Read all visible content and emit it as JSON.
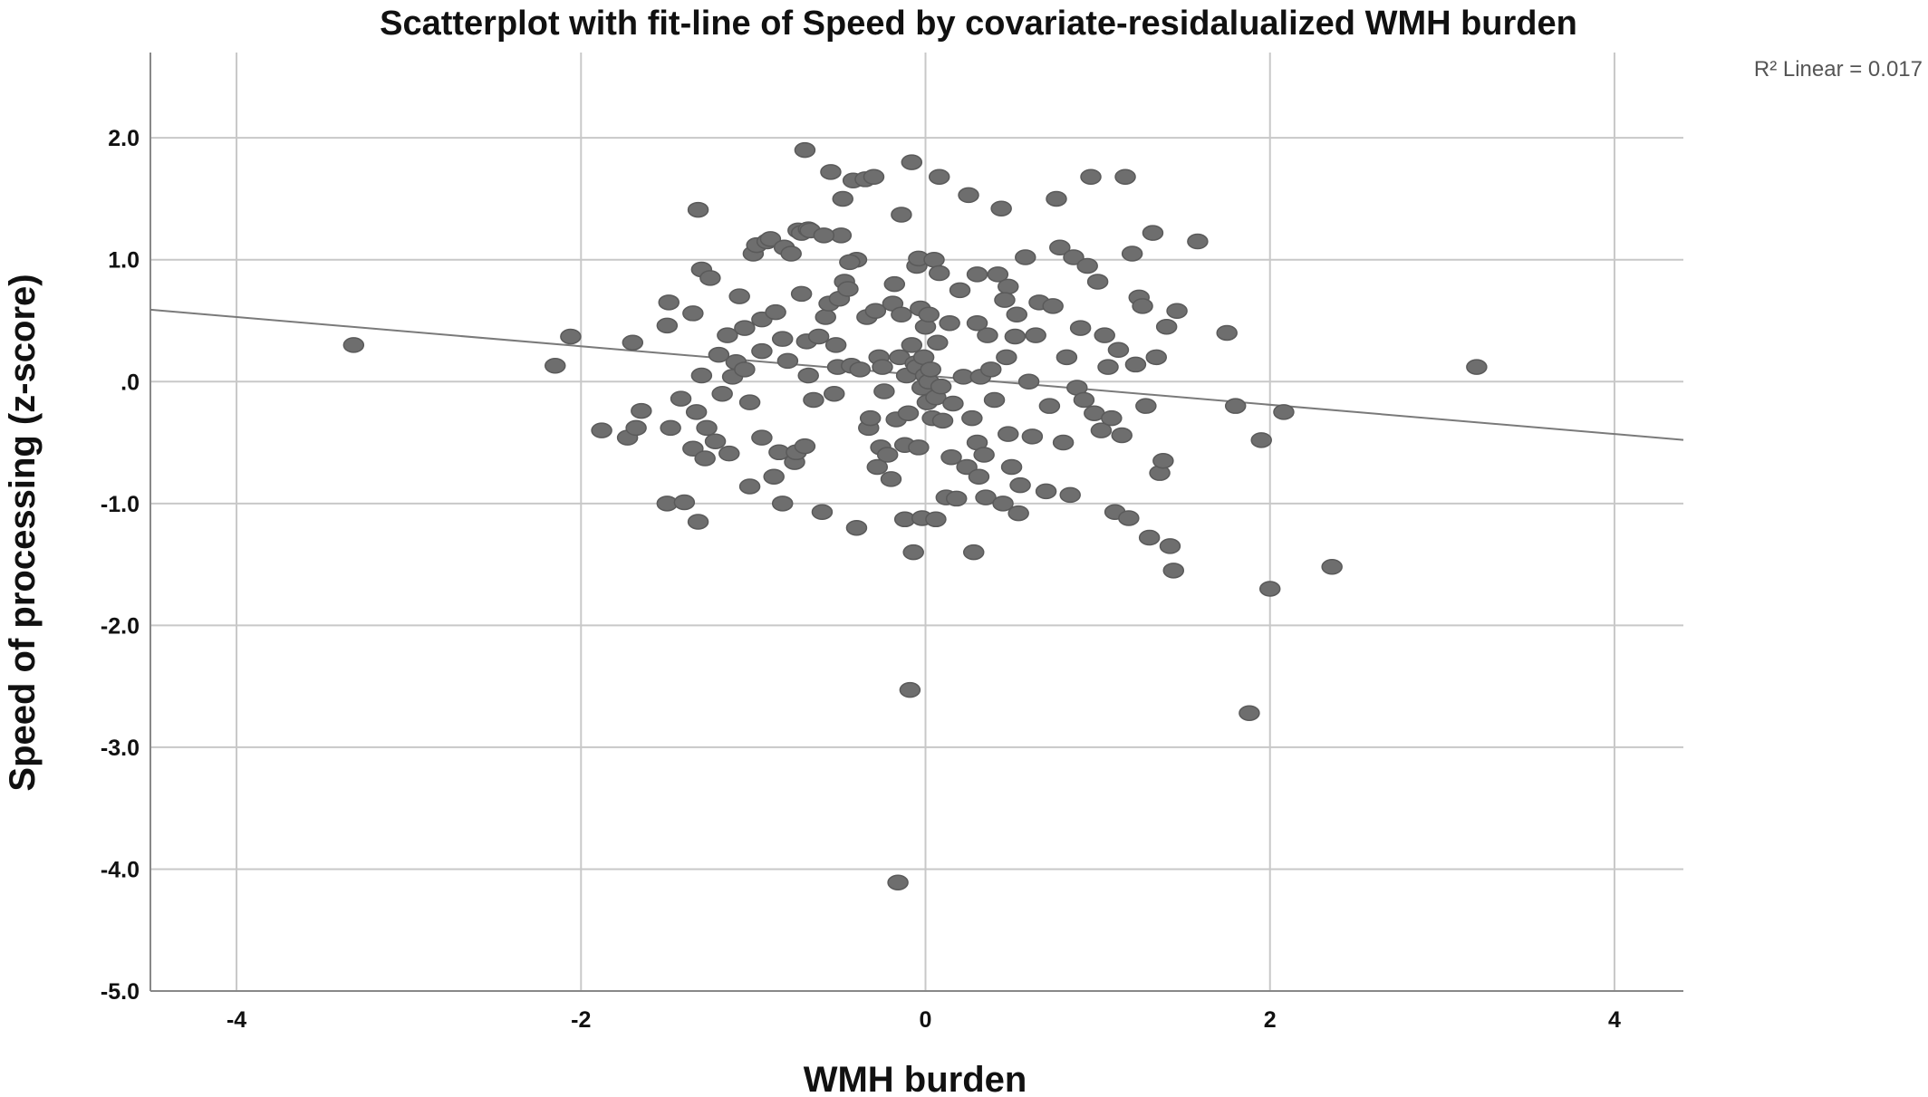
{
  "chart_data": {
    "type": "scatter",
    "title": "Scatterplot with fit-line of Speed by covariate-residalualized WMH burden",
    "xlabel": "WMH burden",
    "ylabel": "Speed of processing (z-score)",
    "xlim": [
      -4.5,
      4.4
    ],
    "ylim": [
      -5.0,
      2.7
    ],
    "x_ticks": [
      -4,
      -2,
      0,
      2,
      4
    ],
    "x_tick_labels": [
      "-4",
      "-2",
      "0",
      "2",
      "4"
    ],
    "y_ticks": [
      2,
      1,
      0,
      -1,
      -2,
      -3,
      -4,
      -5
    ],
    "y_tick_labels": [
      "2.0",
      "1.0",
      ".0",
      "-1.0",
      "-2.0",
      "-3.0",
      "-4.0",
      "-5.0"
    ],
    "grid": true,
    "annotation": "R² Linear = 0.017",
    "fit_line": {
      "intercept": 0.05,
      "slope": -0.12
    },
    "point_color": "#6e6e6e",
    "line_color": "#7a7a7a",
    "points": [
      [
        -3.32,
        0.3
      ],
      [
        -2.15,
        0.13
      ],
      [
        -2.06,
        0.37
      ],
      [
        -1.88,
        -0.4
      ],
      [
        -1.73,
        -0.46
      ],
      [
        -1.7,
        0.32
      ],
      [
        -1.65,
        -0.24
      ],
      [
        -1.68,
        -0.38
      ],
      [
        -1.49,
        0.65
      ],
      [
        -1.5,
        0.46
      ],
      [
        -1.5,
        -1.0
      ],
      [
        -1.48,
        -0.38
      ],
      [
        -1.42,
        -0.14
      ],
      [
        -1.4,
        -0.99
      ],
      [
        -1.35,
        0.56
      ],
      [
        -1.35,
        -0.55
      ],
      [
        -1.33,
        -0.25
      ],
      [
        -1.32,
        -1.15
      ],
      [
        -1.3,
        0.05
      ],
      [
        -1.3,
        0.92
      ],
      [
        -1.28,
        -0.63
      ],
      [
        -1.27,
        -0.38
      ],
      [
        -1.25,
        0.85
      ],
      [
        -1.22,
        -0.49
      ],
      [
        -1.32,
        1.41
      ],
      [
        -1.15,
        0.38
      ],
      [
        -1.14,
        -0.59
      ],
      [
        -1.12,
        0.04
      ],
      [
        -1.1,
        0.16
      ],
      [
        -1.08,
        0.7
      ],
      [
        -1.05,
        0.1
      ],
      [
        -1.05,
        0.44
      ],
      [
        -1.02,
        -0.17
      ],
      [
        -1.02,
        -0.86
      ],
      [
        -1.0,
        1.05
      ],
      [
        -0.98,
        1.12
      ],
      [
        -0.95,
        0.25
      ],
      [
        -0.95,
        0.51
      ],
      [
        -0.95,
        -0.46
      ],
      [
        -0.92,
        1.15
      ],
      [
        -0.9,
        1.17
      ],
      [
        -0.88,
        -0.78
      ],
      [
        -0.87,
        0.57
      ],
      [
        -0.85,
        -0.58
      ],
      [
        -0.83,
        -1.0
      ],
      [
        -0.82,
        1.1
      ],
      [
        -0.8,
        0.17
      ],
      [
        -0.78,
        1.05
      ],
      [
        -0.76,
        -0.66
      ],
      [
        -0.75,
        -0.58
      ],
      [
        -0.74,
        1.24
      ],
      [
        -0.72,
        0.72
      ],
      [
        -0.72,
        1.22
      ],
      [
        -0.7,
        1.9
      ],
      [
        -0.7,
        -0.53
      ],
      [
        -0.69,
        0.33
      ],
      [
        -0.68,
        0.05
      ],
      [
        -0.68,
        1.25
      ],
      [
        -0.67,
        1.24
      ],
      [
        -0.65,
        -0.15
      ],
      [
        -0.62,
        0.37
      ],
      [
        -0.6,
        -1.07
      ],
      [
        -0.58,
        0.53
      ],
      [
        -0.56,
        0.64
      ],
      [
        -0.55,
        1.72
      ],
      [
        -0.52,
        0.3
      ],
      [
        -0.51,
        0.12
      ],
      [
        -0.5,
        0.68
      ],
      [
        -0.49,
        1.2
      ],
      [
        -0.48,
        1.5
      ],
      [
        -0.47,
        0.82
      ],
      [
        -0.45,
        0.76
      ],
      [
        -0.43,
        0.13
      ],
      [
        -0.42,
        1.65
      ],
      [
        -0.4,
        1.0
      ],
      [
        -0.4,
        -1.2
      ],
      [
        -0.38,
        0.1
      ],
      [
        -0.35,
        1.66
      ],
      [
        -0.34,
        0.53
      ],
      [
        -0.33,
        -0.38
      ],
      [
        -0.32,
        -0.3
      ],
      [
        -0.3,
        1.68
      ],
      [
        -0.29,
        0.58
      ],
      [
        -0.28,
        -0.7
      ],
      [
        -0.27,
        0.2
      ],
      [
        -0.26,
        -0.54
      ],
      [
        -0.25,
        0.12
      ],
      [
        -0.24,
        -0.08
      ],
      [
        -0.22,
        -0.6
      ],
      [
        -0.2,
        -0.8
      ],
      [
        -0.19,
        0.64
      ],
      [
        -0.18,
        0.8
      ],
      [
        -0.17,
        -0.31
      ],
      [
        -0.16,
        -4.11
      ],
      [
        -0.15,
        0.2
      ],
      [
        -0.14,
        1.37
      ],
      [
        -0.14,
        0.55
      ],
      [
        -0.12,
        -1.13
      ],
      [
        -0.12,
        -0.52
      ],
      [
        -0.11,
        0.05
      ],
      [
        -0.1,
        -0.26
      ],
      [
        -0.09,
        -2.53
      ],
      [
        -0.08,
        1.8
      ],
      [
        -0.08,
        0.3
      ],
      [
        -0.07,
        -1.4
      ],
      [
        -0.06,
        0.15
      ],
      [
        -0.05,
        0.95
      ],
      [
        -0.05,
        0.12
      ],
      [
        -0.04,
        1.01
      ],
      [
        -0.04,
        -0.54
      ],
      [
        -0.03,
        0.6
      ],
      [
        -0.02,
        -0.05
      ],
      [
        -0.02,
        -1.12
      ],
      [
        -0.01,
        0.2
      ],
      [
        0.0,
        0.45
      ],
      [
        0.0,
        0.05
      ],
      [
        0.01,
        -0.17
      ],
      [
        0.02,
        0.0
      ],
      [
        0.02,
        0.55
      ],
      [
        0.03,
        0.1
      ],
      [
        0.04,
        -0.3
      ],
      [
        0.05,
        1.0
      ],
      [
        0.06,
        -0.13
      ],
      [
        0.06,
        -1.13
      ],
      [
        0.07,
        0.32
      ],
      [
        0.08,
        1.68
      ],
      [
        0.08,
        0.89
      ],
      [
        0.09,
        -0.04
      ],
      [
        0.1,
        -0.32
      ],
      [
        0.12,
        -0.95
      ],
      [
        0.14,
        0.48
      ],
      [
        0.15,
        -0.62
      ],
      [
        0.16,
        -0.18
      ],
      [
        0.18,
        -0.96
      ],
      [
        0.2,
        0.75
      ],
      [
        0.22,
        0.04
      ],
      [
        0.24,
        -0.7
      ],
      [
        0.25,
        1.53
      ],
      [
        0.27,
        -0.3
      ],
      [
        0.28,
        -1.4
      ],
      [
        0.3,
        -0.5
      ],
      [
        0.3,
        0.88
      ],
      [
        0.31,
        -0.78
      ],
      [
        0.32,
        0.04
      ],
      [
        0.34,
        -0.6
      ],
      [
        0.35,
        -0.95
      ],
      [
        0.36,
        0.38
      ],
      [
        0.38,
        0.1
      ],
      [
        0.4,
        -0.15
      ],
      [
        0.42,
        0.88
      ],
      [
        0.44,
        1.42
      ],
      [
        0.45,
        -1.0
      ],
      [
        0.47,
        0.2
      ],
      [
        0.48,
        -0.43
      ],
      [
        0.48,
        0.78
      ],
      [
        0.5,
        -0.7
      ],
      [
        0.52,
        0.37
      ],
      [
        0.53,
        0.55
      ],
      [
        0.54,
        -1.08
      ],
      [
        0.55,
        -0.85
      ],
      [
        0.58,
        1.02
      ],
      [
        0.6,
        0.0
      ],
      [
        0.62,
        -0.45
      ],
      [
        0.64,
        0.38
      ],
      [
        0.66,
        0.65
      ],
      [
        0.7,
        -0.9
      ],
      [
        0.72,
        -0.2
      ],
      [
        0.74,
        0.62
      ],
      [
        0.76,
        1.5
      ],
      [
        0.78,
        1.1
      ],
      [
        0.8,
        -0.5
      ],
      [
        0.82,
        0.2
      ],
      [
        0.84,
        -0.93
      ],
      [
        0.86,
        1.02
      ],
      [
        0.88,
        -0.05
      ],
      [
        0.9,
        0.44
      ],
      [
        0.92,
        -0.15
      ],
      [
        0.94,
        0.95
      ],
      [
        0.96,
        1.68
      ],
      [
        0.98,
        -0.26
      ],
      [
        1.0,
        0.82
      ],
      [
        1.02,
        -0.4
      ],
      [
        1.04,
        0.38
      ],
      [
        1.06,
        0.12
      ],
      [
        1.08,
        -0.3
      ],
      [
        1.1,
        -1.07
      ],
      [
        1.12,
        0.26
      ],
      [
        1.14,
        -0.44
      ],
      [
        1.16,
        1.68
      ],
      [
        1.18,
        -1.12
      ],
      [
        1.2,
        1.05
      ],
      [
        1.22,
        0.14
      ],
      [
        1.24,
        0.69
      ],
      [
        1.26,
        0.62
      ],
      [
        1.28,
        -0.2
      ],
      [
        1.3,
        -1.28
      ],
      [
        1.32,
        1.22
      ],
      [
        1.34,
        0.2
      ],
      [
        1.36,
        -0.75
      ],
      [
        1.38,
        -0.65
      ],
      [
        1.4,
        0.45
      ],
      [
        1.42,
        -1.35
      ],
      [
        1.44,
        -1.55
      ],
      [
        1.46,
        0.58
      ],
      [
        1.58,
        1.15
      ],
      [
        1.75,
        0.4
      ],
      [
        1.8,
        -0.2
      ],
      [
        1.88,
        -2.72
      ],
      [
        1.95,
        -0.48
      ],
      [
        2.0,
        -1.7
      ],
      [
        2.08,
        -0.25
      ],
      [
        2.36,
        -1.52
      ],
      [
        3.2,
        0.12
      ],
      [
        -0.59,
        1.2
      ],
      [
        -0.44,
        0.98
      ],
      [
        -0.53,
        -0.1
      ],
      [
        0.3,
        0.48
      ],
      [
        0.46,
        0.67
      ],
      [
        -0.83,
        0.35
      ],
      [
        -1.2,
        0.22
      ],
      [
        -1.18,
        -0.1
      ]
    ]
  }
}
